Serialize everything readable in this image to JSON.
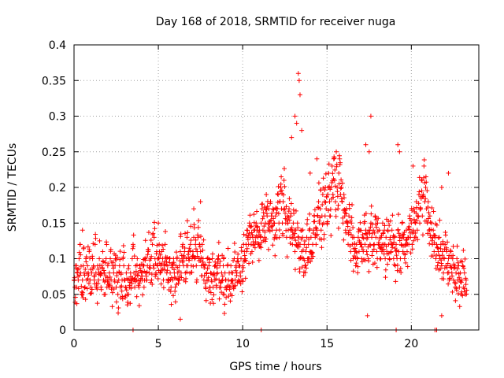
{
  "chart_data": {
    "type": "scatter",
    "title": "Day 168 of 2018, SRMTID for receiver nuga",
    "xlabel": "GPS time / hours",
    "ylabel": "SRMTID / TECUs",
    "xlim": [
      0,
      24
    ],
    "ylim": [
      0,
      0.4
    ],
    "xticks": [
      0,
      5,
      10,
      15,
      20
    ],
    "yticks": [
      0,
      0.05,
      0.1,
      0.15,
      0.2,
      0.25,
      0.3,
      0.35,
      0.4
    ],
    "xtick_labels": [
      "0",
      "5",
      "10",
      "15",
      "20"
    ],
    "ytick_labels": [
      "0",
      "0.05",
      "0.1",
      "0.15",
      "0.2",
      "0.25",
      "0.3",
      "0.35",
      "0.4"
    ],
    "grid": true,
    "marker": "+",
    "color": "#ff0000",
    "series": [
      {
        "name": "SRMTID",
        "x_start": 0,
        "x_step": 0.05,
        "y": [
          0.07,
          0.06,
          0.09,
          0.06,
          0.08,
          0.07,
          0.1,
          0.12,
          0.08,
          0.05,
          0.07,
          0.09,
          0.08,
          0.06,
          0.1,
          0.07,
          0.09,
          0.08,
          0.11,
          0.07,
          0.06,
          0.08,
          0.1,
          0.09,
          0.07,
          0.12,
          0.08,
          0.06,
          0.09,
          0.07,
          0.1,
          0.08,
          0.06,
          0.09,
          0.11,
          0.07,
          0.08,
          0.05,
          0.1,
          0.06,
          0.09,
          0.07,
          0.08,
          0.1,
          0.07,
          0.06,
          0.09,
          0.08,
          0.07,
          0.1,
          0.06,
          0.08,
          0.05,
          0.07,
          0.09,
          0.06,
          0.08,
          0.07,
          0.1,
          0.09,
          0.07,
          0.06,
          0.08,
          0.05,
          0.07,
          0.09,
          0.06,
          0.08,
          0.07,
          0.1,
          0.12,
          0.08,
          0.06,
          0.09,
          0.07,
          0.1,
          0.08,
          0.06,
          0.09,
          0.07,
          0.08,
          0.07,
          0.09,
          0.06,
          0.1,
          0.08,
          0.07,
          0.09,
          0.11,
          0.08,
          0.09,
          0.1,
          0.07,
          0.12,
          0.09,
          0.13,
          0.1,
          0.08,
          0.11,
          0.09,
          0.1,
          0.12,
          0.08,
          0.09,
          0.11,
          0.1,
          0.07,
          0.09,
          0.12,
          0.1,
          0.08,
          0.09,
          0.07,
          0.1,
          0.08,
          0.06,
          0.09,
          0.07,
          0.1,
          0.08,
          0.06,
          0.09,
          0.1,
          0.08,
          0.07,
          0.09,
          0.11,
          0.08,
          0.1,
          0.12,
          0.09,
          0.11,
          0.08,
          0.1,
          0.13,
          0.09,
          0.11,
          0.1,
          0.12,
          0.09,
          0.1,
          0.11,
          0.13,
          0.1,
          0.12,
          0.09,
          0.11,
          0.13,
          0.1,
          0.12,
          0.11,
          0.09,
          0.12,
          0.1,
          0.07,
          0.09,
          0.06,
          0.08,
          0.1,
          0.07,
          0.09,
          0.06,
          0.08,
          0.07,
          0.1,
          0.06,
          0.08,
          0.07,
          0.09,
          0.06,
          0.08,
          0.1,
          0.07,
          0.09,
          0.06,
          0.08,
          0.07,
          0.09,
          0.05,
          0.08,
          0.07,
          0.06,
          0.09,
          0.07,
          0.08,
          0.06,
          0.09,
          0.07,
          0.08,
          0.06,
          0.1,
          0.07,
          0.09,
          0.08,
          0.1,
          0.07,
          0.09,
          0.08,
          0.1,
          0.07,
          0.09,
          0.12,
          0.11,
          0.1,
          0.12,
          0.14,
          0.13,
          0.12,
          0.15,
          0.13,
          0.12,
          0.11,
          0.13,
          0.14,
          0.12,
          0.13,
          0.15,
          0.14,
          0.13,
          0.12,
          0.14,
          0.13,
          0.15,
          0.17,
          0.14,
          0.16,
          0.13,
          0.15,
          0.19,
          0.16,
          0.14,
          0.17,
          0.15,
          0.18,
          0.16,
          0.14,
          0.17,
          0.15,
          0.13,
          0.16,
          0.14,
          0.17,
          0.19,
          0.15,
          0.18,
          0.2,
          0.17,
          0.15,
          0.18,
          0.21,
          0.17,
          0.15,
          0.13,
          0.16,
          0.14,
          0.17,
          0.13,
          0.16,
          0.14,
          0.12,
          0.15,
          0.13,
          0.11,
          0.14,
          0.12,
          0.15,
          0.13,
          0.1,
          0.12,
          0.14,
          0.11,
          0.13,
          0.1,
          0.12,
          0.09,
          0.11,
          0.13,
          0.1,
          0.12,
          0.14,
          0.11,
          0.13,
          0.1,
          0.12,
          0.14,
          0.16,
          0.13,
          0.12,
          0.14,
          0.16,
          0.18,
          0.15,
          0.17,
          0.14,
          0.16,
          0.19,
          0.15,
          0.18,
          0.2,
          0.17,
          0.15,
          0.19,
          0.22,
          0.18,
          0.16,
          0.2,
          0.23,
          0.19,
          0.24,
          0.21,
          0.18,
          0.25,
          0.2,
          0.17,
          0.22,
          0.24,
          0.19,
          0.2,
          0.18,
          0.15,
          0.19,
          0.16,
          0.14,
          0.17,
          0.15,
          0.12,
          0.16,
          0.14,
          0.11,
          0.15,
          0.12,
          0.1,
          0.13,
          0.11,
          0.09,
          0.12,
          0.1,
          0.13,
          0.11,
          0.14,
          0.12,
          0.1,
          0.13,
          0.11,
          0.15,
          0.12,
          0.14,
          0.11,
          0.13,
          0.1,
          0.14,
          0.12,
          0.15,
          0.13,
          0.11,
          0.14,
          0.12,
          0.16,
          0.13,
          0.11,
          0.15,
          0.12,
          0.14,
          0.1,
          0.13,
          0.11,
          0.15,
          0.12,
          0.14,
          0.1,
          0.13,
          0.11,
          0.14,
          0.12,
          0.1,
          0.13,
          0.11,
          0.14,
          0.12,
          0.1,
          0.13,
          0.09,
          0.12,
          0.1,
          0.14,
          0.11,
          0.13,
          0.1,
          0.12,
          0.15,
          0.11,
          0.13,
          0.1,
          0.12,
          0.14,
          0.11,
          0.13,
          0.12,
          0.16,
          0.13,
          0.15,
          0.12,
          0.14,
          0.17,
          0.13,
          0.15,
          0.18,
          0.14,
          0.16,
          0.19,
          0.15,
          0.17,
          0.21,
          0.16,
          0.19,
          0.23,
          0.18,
          0.2,
          0.17,
          0.15,
          0.18,
          0.14,
          0.16,
          0.13,
          0.15,
          0.12,
          0.14,
          0.11,
          0.13,
          0.1,
          0.12,
          0.09,
          0.11,
          0.13,
          0.1,
          0.12,
          0.09,
          0.11,
          0.08,
          0.1,
          0.12,
          0.09,
          0.11,
          0.08,
          0.1,
          0.07,
          0.09,
          0.11,
          0.08,
          0.1,
          0.07,
          0.09,
          0.06,
          0.08,
          0.1,
          0.07,
          0.09,
          0.06,
          0.08,
          0.05,
          0.07,
          0.09,
          0.06,
          0.08,
          0.05,
          0.07
        ]
      }
    ],
    "extra_points": [
      {
        "x": 13.1,
        "y": 0.3
      },
      {
        "x": 13.3,
        "y": 0.36
      },
      {
        "x": 13.35,
        "y": 0.35
      },
      {
        "x": 13.4,
        "y": 0.33
      },
      {
        "x": 13.2,
        "y": 0.29
      },
      {
        "x": 13.5,
        "y": 0.28
      },
      {
        "x": 12.9,
        "y": 0.27
      },
      {
        "x": 17.6,
        "y": 0.3
      },
      {
        "x": 19.2,
        "y": 0.26
      },
      {
        "x": 19.3,
        "y": 0.25
      },
      {
        "x": 17.5,
        "y": 0.25
      },
      {
        "x": 17.3,
        "y": 0.26
      },
      {
        "x": 14.4,
        "y": 0.24
      },
      {
        "x": 14.0,
        "y": 0.22
      },
      {
        "x": 20.1,
        "y": 0.23
      },
      {
        "x": 22.2,
        "y": 0.22
      },
      {
        "x": 21.8,
        "y": 0.2
      },
      {
        "x": 17.4,
        "y": 0.02
      },
      {
        "x": 6.3,
        "y": 0.015
      },
      {
        "x": 21.8,
        "y": 0.02
      },
      {
        "x": 7.5,
        "y": 0.18
      },
      {
        "x": 7.1,
        "y": 0.17
      },
      {
        "x": 5.0,
        "y": 0.15
      },
      {
        "x": 0.5,
        "y": 0.14
      },
      {
        "x": 3.5,
        "y": 0.0
      },
      {
        "x": 11.1,
        "y": 0.0
      },
      {
        "x": 19.1,
        "y": 0.0
      },
      {
        "x": 21.4,
        "y": 0.0
      },
      {
        "x": 21.5,
        "y": 0.0
      }
    ]
  }
}
